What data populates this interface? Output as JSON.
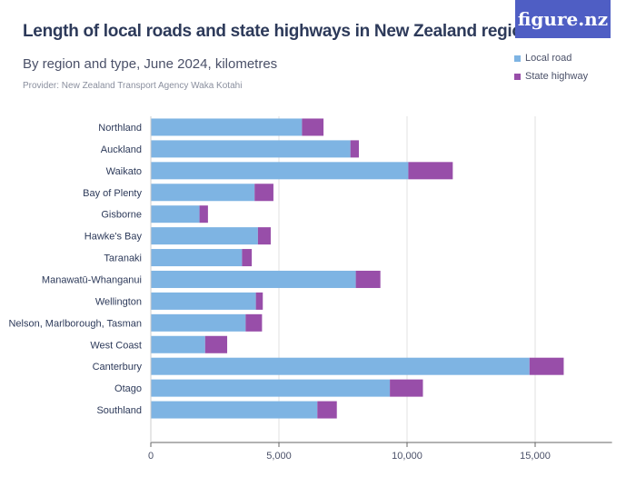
{
  "logo_text": "figure.nz",
  "chart_data": {
    "type": "bar",
    "stacked": true,
    "orientation": "horizontal",
    "title": "Length of local roads and state highways in New Zealand regions",
    "subtitle": "By region and type, June 2024, kilometres",
    "provider": "Provider: New Zealand Transport Agency Waka Kotahi",
    "categories": [
      "Northland",
      "Auckland",
      "Waikato",
      "Bay of Plenty",
      "Gisborne",
      "Hawke's Bay",
      "Taranaki",
      "Manawatū-Whanganui",
      "Wellington",
      "Nelson, Marlborough, Tasman",
      "West Coast",
      "Canterbury",
      "Otago",
      "Southland"
    ],
    "series": [
      {
        "name": "Local road",
        "color": "#7eb4e3",
        "values": [
          5900,
          7790,
          10050,
          4050,
          1900,
          4180,
          3560,
          8000,
          4100,
          3700,
          2120,
          14780,
          9330,
          6500
        ]
      },
      {
        "name": "State highway",
        "color": "#984ea9",
        "values": [
          840,
          330,
          1735,
          735,
          330,
          500,
          380,
          960,
          270,
          640,
          860,
          1335,
          1290,
          760
        ]
      }
    ],
    "xlim": [
      0,
      18000
    ],
    "xticks": [
      0,
      5000,
      10000,
      15000
    ],
    "xtick_labels": [
      "0",
      "5,000",
      "10,000",
      "15,000"
    ],
    "grid": true,
    "legend": "top-right"
  }
}
